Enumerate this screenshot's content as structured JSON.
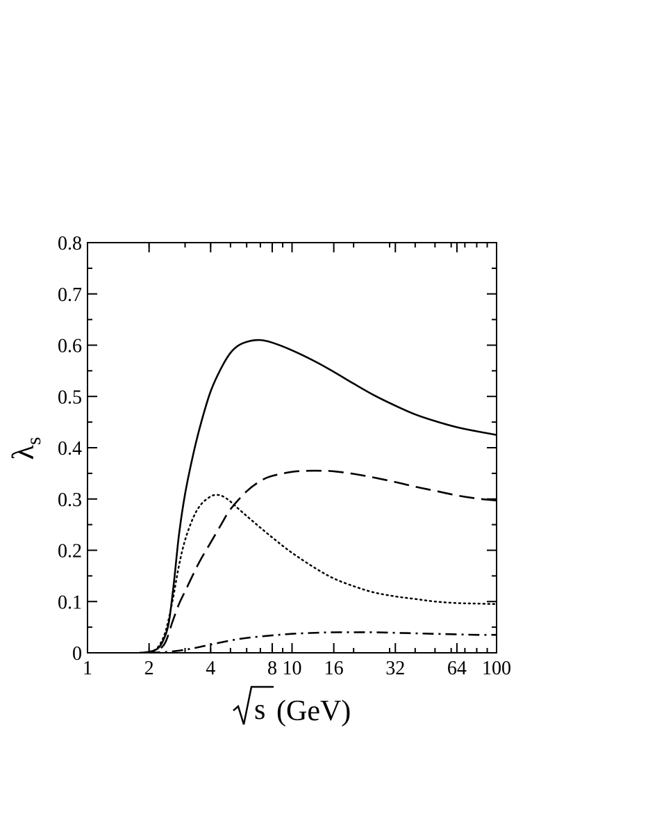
{
  "chart_data": {
    "type": "line",
    "title": "",
    "xlabel": "(GeV)",
    "xlabel_symbol": "s",
    "ylabel_symbol": "λ",
    "ylabel_subscript": "s",
    "xscale": "log",
    "xlim": [
      1,
      100
    ],
    "ylim": [
      0,
      0.8
    ],
    "x_ticks": [
      {
        "value": 1,
        "label": "1"
      },
      {
        "value": 2,
        "label": "2"
      },
      {
        "value": 4,
        "label": "4"
      },
      {
        "value": 8,
        "label": "8"
      },
      {
        "value": 10,
        "label": "10"
      },
      {
        "value": 16,
        "label": "16"
      },
      {
        "value": 32,
        "label": "32"
      },
      {
        "value": 64,
        "label": "64"
      },
      {
        "value": 100,
        "label": "100"
      }
    ],
    "y_ticks": [
      {
        "value": 0,
        "label": "0"
      },
      {
        "value": 0.1,
        "label": "0.1"
      },
      {
        "value": 0.2,
        "label": "0.2"
      },
      {
        "value": 0.3,
        "label": "0.3"
      },
      {
        "value": 0.4,
        "label": "0.4"
      },
      {
        "value": 0.5,
        "label": "0.5"
      },
      {
        "value": 0.6,
        "label": "0.6"
      },
      {
        "value": 0.7,
        "label": "0.7"
      },
      {
        "value": 0.8,
        "label": "0.8"
      }
    ],
    "grid": false,
    "legend": "none",
    "series": [
      {
        "name": "solid",
        "style": "solid",
        "x": [
          1.8,
          2.0,
          2.2,
          2.35,
          2.5,
          2.65,
          2.8,
          3.0,
          3.3,
          3.6,
          4.0,
          4.5,
          5.0,
          5.5,
          6.2,
          7.0,
          8.0,
          10,
          13,
          16,
          20,
          25,
          32,
          40,
          50,
          64,
          80,
          100
        ],
        "values": [
          0.0,
          0.002,
          0.008,
          0.025,
          0.06,
          0.14,
          0.23,
          0.31,
          0.39,
          0.45,
          0.51,
          0.555,
          0.585,
          0.6,
          0.608,
          0.61,
          0.605,
          0.59,
          0.568,
          0.548,
          0.525,
          0.503,
          0.482,
          0.465,
          0.452,
          0.44,
          0.432,
          0.425
        ]
      },
      {
        "name": "dashed",
        "style": "dashed",
        "x": [
          1.8,
          2.0,
          2.2,
          2.4,
          2.6,
          2.8,
          3.0,
          3.5,
          4.0,
          4.5,
          5.0,
          6.0,
          7.0,
          8.0,
          10,
          12,
          14,
          16,
          20,
          25,
          32,
          40,
          50,
          64,
          80,
          100
        ],
        "values": [
          0.0,
          0.001,
          0.005,
          0.02,
          0.06,
          0.095,
          0.12,
          0.175,
          0.215,
          0.25,
          0.28,
          0.315,
          0.335,
          0.345,
          0.353,
          0.355,
          0.355,
          0.354,
          0.349,
          0.342,
          0.333,
          0.324,
          0.316,
          0.307,
          0.301,
          0.297
        ]
      },
      {
        "name": "dotted",
        "style": "dotted",
        "x": [
          1.8,
          2.0,
          2.2,
          2.4,
          2.6,
          2.8,
          3.0,
          3.3,
          3.6,
          4.0,
          4.3,
          4.6,
          5.0,
          5.5,
          6.5,
          8.0,
          10,
          13,
          16,
          20,
          25,
          32,
          40,
          50,
          64,
          80,
          100
        ],
        "values": [
          0.0,
          0.002,
          0.01,
          0.04,
          0.1,
          0.17,
          0.22,
          0.265,
          0.29,
          0.305,
          0.308,
          0.305,
          0.295,
          0.28,
          0.255,
          0.225,
          0.195,
          0.165,
          0.145,
          0.13,
          0.118,
          0.11,
          0.105,
          0.1,
          0.097,
          0.096,
          0.095
        ]
      },
      {
        "name": "dash-dot",
        "style": "dashdot",
        "x": [
          2.0,
          2.5,
          3.0,
          3.5,
          4.0,
          5.0,
          6.0,
          8.0,
          10,
          13,
          16,
          20,
          25,
          32,
          40,
          50,
          64,
          80,
          100
        ],
        "values": [
          0.0,
          0.002,
          0.006,
          0.011,
          0.016,
          0.024,
          0.029,
          0.034,
          0.037,
          0.039,
          0.04,
          0.04,
          0.04,
          0.039,
          0.038,
          0.037,
          0.036,
          0.035,
          0.035
        ]
      }
    ]
  }
}
